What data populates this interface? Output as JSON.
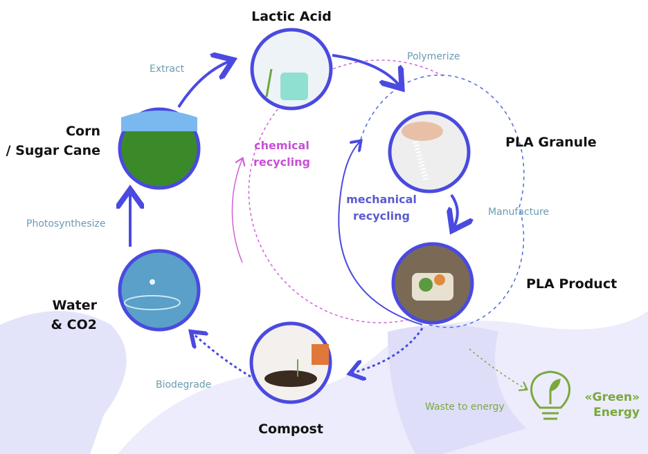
{
  "nodes": [
    {
      "label": [
        "Lactic Acid"
      ]
    },
    {
      "label": [
        "PLA Granule"
      ]
    },
    {
      "label": [
        "PLA Product"
      ]
    },
    {
      "label": [
        "Compost"
      ]
    },
    {
      "label": [
        "Water",
        "& CO2"
      ]
    },
    {
      "label": [
        "Corn",
        "/ Sugar Cane"
      ]
    }
  ],
  "edges": [
    {
      "label": "Polymerize"
    },
    {
      "label": "Manufacture"
    },
    {
      "label": "Biodegrade"
    },
    {
      "label": "Photosynthesize"
    },
    {
      "label": "Extract"
    },
    {
      "label": "Waste to energy"
    }
  ],
  "recycling": {
    "chemical": [
      "chemical",
      "recycling"
    ],
    "mechanical": [
      "mechanical",
      "recycling"
    ]
  },
  "energy": [
    "«Green»",
    "Energy"
  ]
}
